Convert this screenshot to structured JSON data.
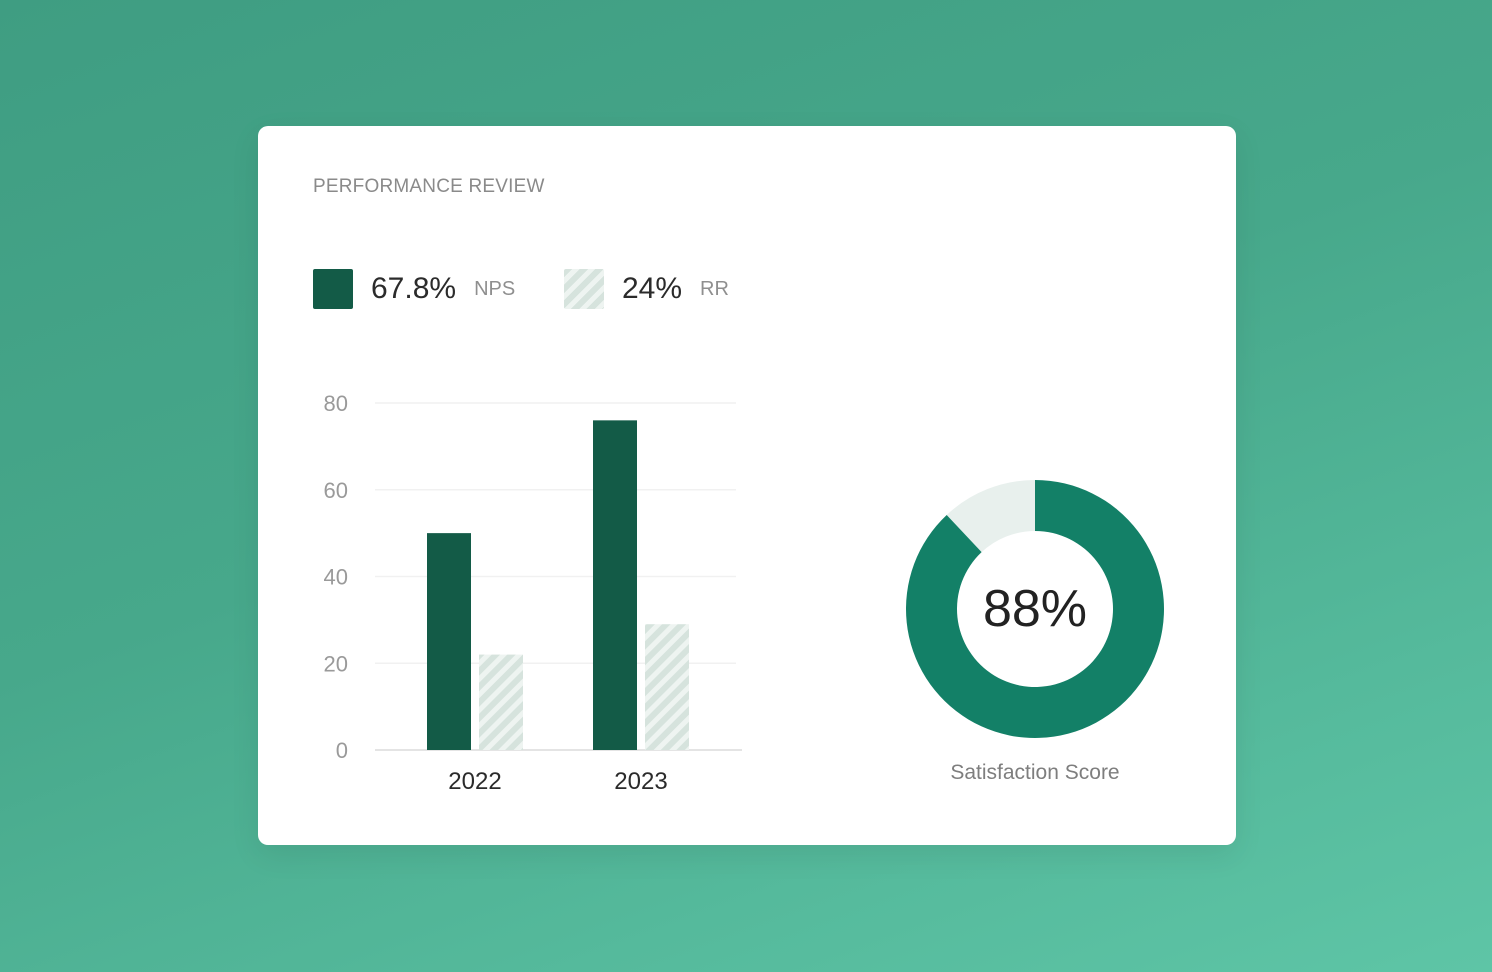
{
  "card": {
    "title": "PERFORMANCE REVIEW"
  },
  "legend": {
    "nps": {
      "value": "67.8%",
      "label": "NPS"
    },
    "rr": {
      "value": "24%",
      "label": "RR"
    }
  },
  "chart_data": [
    {
      "type": "bar",
      "categories": [
        "2022",
        "2023"
      ],
      "series": [
        {
          "name": "NPS",
          "values": [
            50,
            76
          ],
          "color": "#135b47",
          "pattern": "solid"
        },
        {
          "name": "RR",
          "values": [
            22,
            29
          ],
          "color": "#d6e3dd",
          "pattern": "hatched"
        }
      ],
      "yticks": [
        "0",
        "20",
        "40",
        "60",
        "80"
      ],
      "ylim": [
        0,
        80
      ],
      "grid": true
    },
    {
      "type": "pie",
      "variant": "donut",
      "value": 88,
      "center_text": "88%",
      "label": "Satisfaction Score",
      "colors": {
        "filled": "#138067",
        "remainder": "#e8f0ed"
      }
    }
  ]
}
